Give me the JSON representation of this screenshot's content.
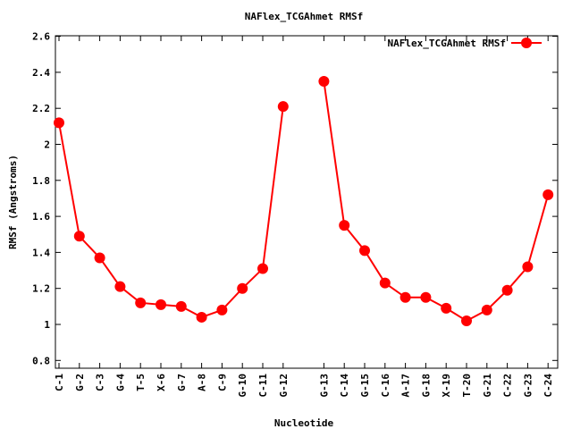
{
  "chart_data": {
    "type": "line",
    "title": "NAFlex_TCGAhmet RMSf",
    "xlabel": "Nucleotide",
    "ylabel": "RMSf (Angstroms)",
    "ylim": [
      0.76,
      2.61
    ],
    "yticks": [
      "0.8",
      "1",
      "1.2",
      "1.4",
      "1.6",
      "1.8",
      "2",
      "2.2",
      "2.4",
      "2.6"
    ],
    "ytick_values": [
      0.8,
      1.0,
      1.2,
      1.4,
      1.6,
      1.8,
      2.0,
      2.2,
      2.4,
      2.6
    ],
    "grid": false,
    "legend_position": "top-right",
    "color": "#ff0000",
    "series": [
      {
        "name": "NAFlex_TCGAhmet RMSf",
        "segments": [
          {
            "categories": [
              "C-1",
              "G-2",
              "C-3",
              "G-4",
              "T-5",
              "X-6",
              "G-7",
              "A-8",
              "C-9",
              "G-10",
              "C-11",
              "G-12"
            ],
            "positions": [
              1,
              2,
              3,
              4,
              5,
              6,
              7,
              8,
              9,
              10,
              11,
              12
            ],
            "values": [
              2.12,
              1.49,
              1.37,
              1.21,
              1.12,
              1.11,
              1.1,
              1.04,
              1.08,
              1.2,
              1.31,
              2.21
            ]
          },
          {
            "categories": [
              "G-13",
              "C-14",
              "G-15",
              "C-16",
              "A-17",
              "G-18",
              "X-19",
              "T-20",
              "G-21",
              "C-22",
              "G-23",
              "C-24"
            ],
            "positions": [
              14,
              15,
              16,
              17,
              18,
              19,
              20,
              21,
              22,
              23,
              24,
              25
            ],
            "values": [
              2.35,
              1.55,
              1.41,
              1.23,
              1.15,
              1.15,
              1.09,
              1.02,
              1.08,
              1.19,
              1.32,
              1.72
            ]
          }
        ]
      }
    ]
  }
}
